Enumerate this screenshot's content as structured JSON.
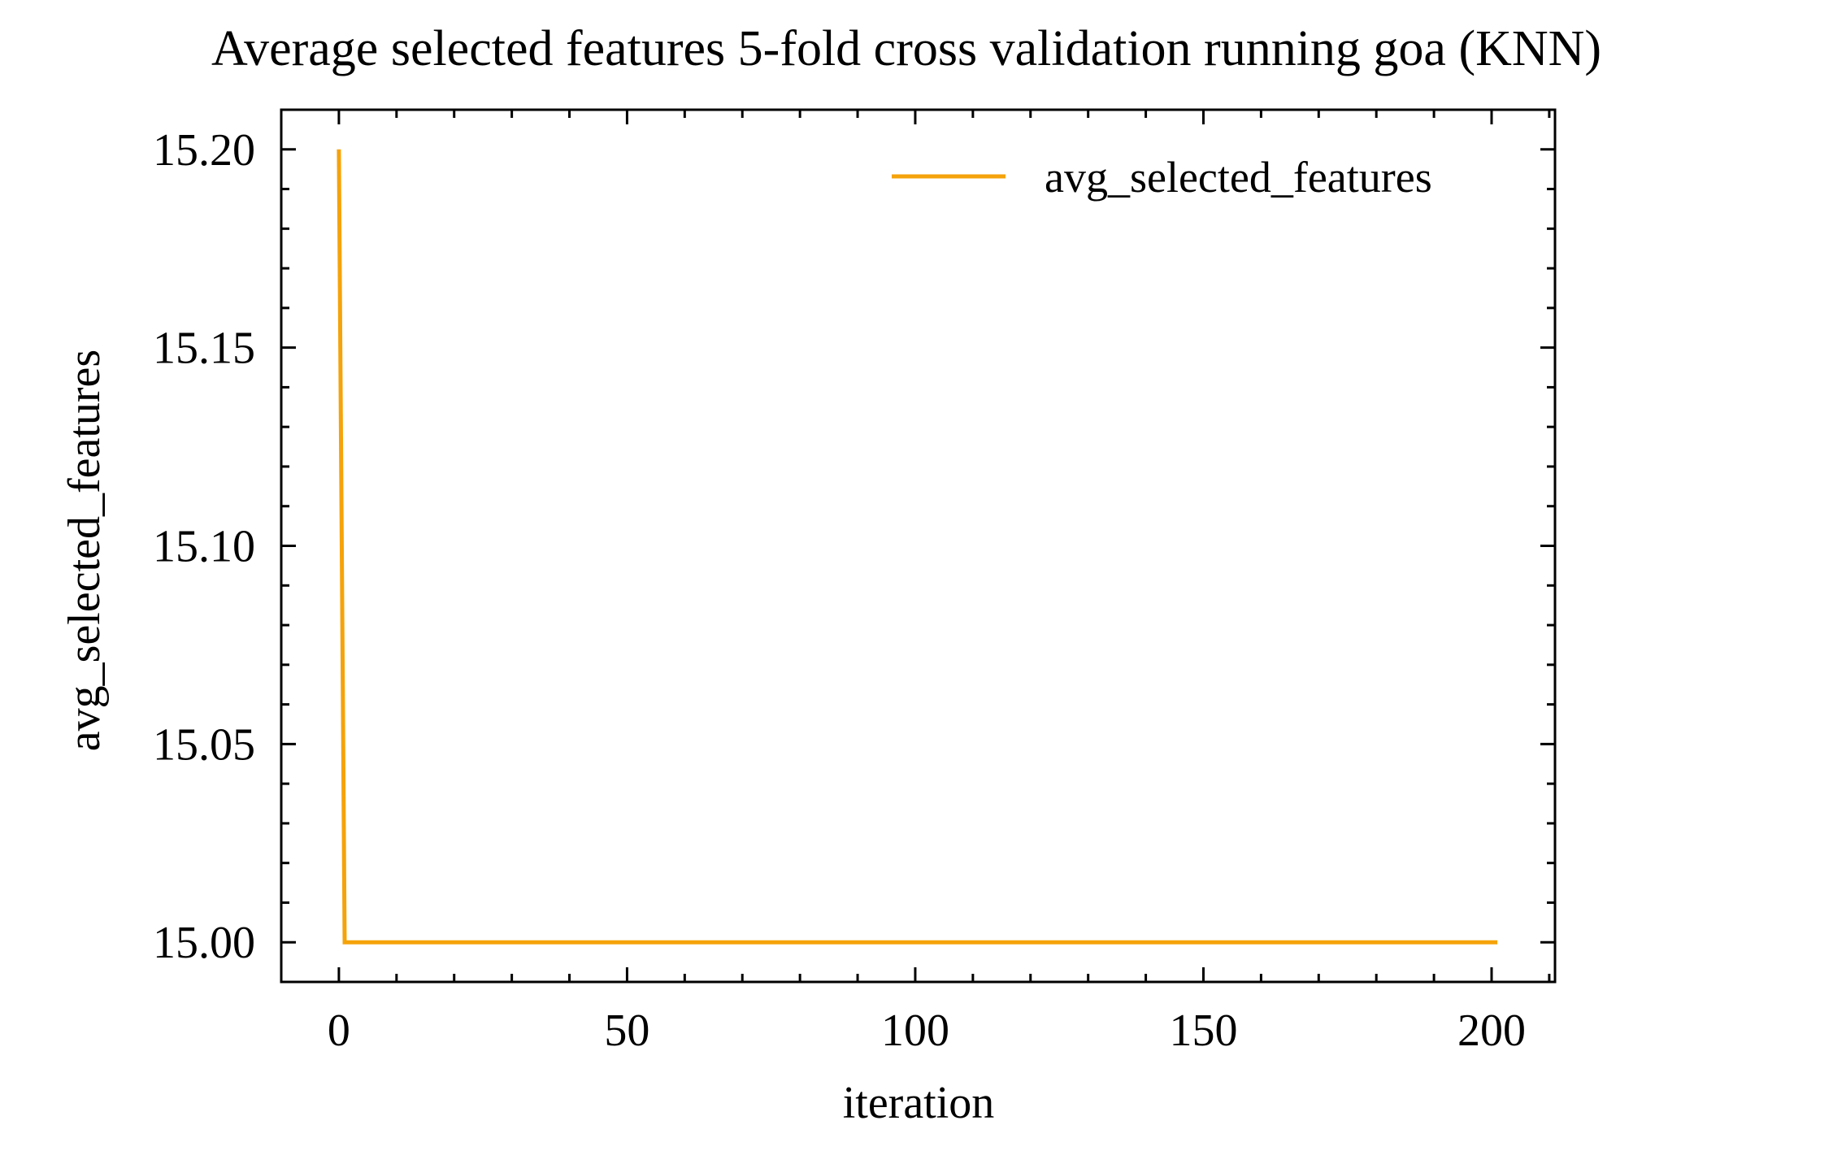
{
  "chart_data": {
    "type": "line",
    "title": "Average selected features 5-fold cross validation running goa (KNN)",
    "xlabel": "iteration",
    "ylabel": "avg_selected_features",
    "xlim": [
      -10,
      211
    ],
    "ylim": [
      14.99,
      15.21
    ],
    "x_major_ticks": [
      0,
      50,
      100,
      150,
      200
    ],
    "x_tick_labels": [
      "0",
      "50",
      "100",
      "150",
      "200"
    ],
    "x_minor_step": 10,
    "y_major_ticks": [
      15.0,
      15.05,
      15.1,
      15.15,
      15.2
    ],
    "y_tick_labels": [
      "15.00",
      "15.05",
      "15.10",
      "15.15",
      "15.20"
    ],
    "y_minor_step": 0.01,
    "grid": false,
    "legend_position": "top-right",
    "series": [
      {
        "name": "avg_selected_features",
        "color": "#F5A30A",
        "x": [
          0,
          1,
          201
        ],
        "y": [
          15.2,
          15.0,
          15.0
        ]
      }
    ]
  }
}
